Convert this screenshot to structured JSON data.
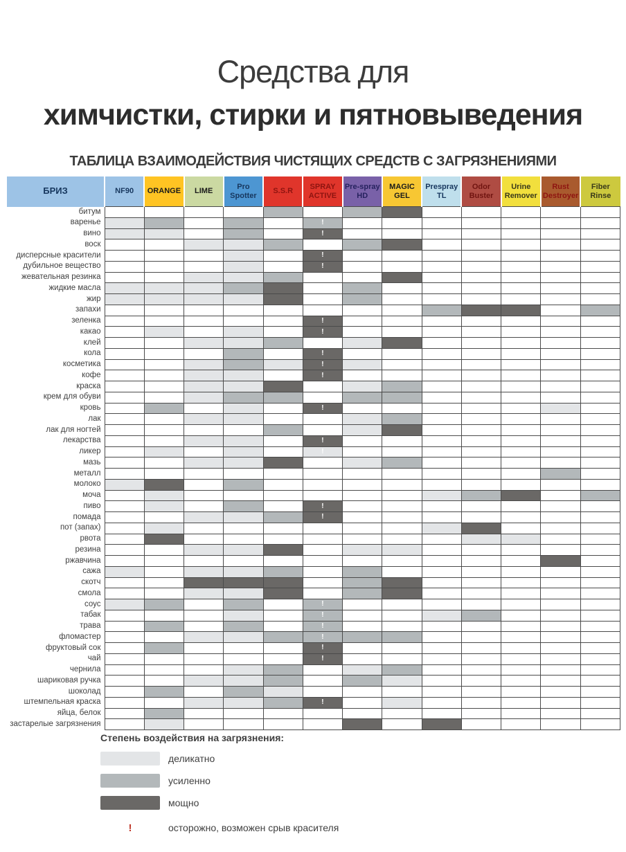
{
  "page": {
    "title_line1": "Средства для",
    "title_line2": "химчистки, стирки и пятновыведения",
    "subtitle": "ТАБЛИЦА ВЗАИМОДЕЙСТВИЯ ЧИСТЯЩИХ СРЕДСТВ С ЗАГРЯЗНЕНИЯМИ"
  },
  "legend": {
    "title": "Степень воздействия на загрязнения:",
    "items": [
      {
        "level": "1",
        "label": "деликатно",
        "color": "#E3E5E7"
      },
      {
        "level": "2",
        "label": "усиленно",
        "color": "#B3B8BA"
      },
      {
        "level": "3",
        "label": "мощно",
        "color": "#6A6866"
      }
    ],
    "warning": {
      "symbol": "!",
      "label": "осторожно, возможен срыв красителя",
      "color": "#C0392B"
    }
  },
  "chart_data": {
    "type": "heatmap",
    "title": "ТАБЛИЦА ВЗАИМОДЕЙСТВИЯ ЧИСТЯЩИХ СРЕДСТВ С ЗАГРЯЗНЕНИЯМИ",
    "corner_label": "БРИЗ",
    "corner_bg": "#9DC3E6",
    "corner_fg": "#17375E",
    "value_scale": {
      "": "не применяется",
      "1": "деликатно",
      "2": "усиленно",
      "3": "мощно",
      "!": "осторожно, возможен срыв красителя"
    },
    "cell_colors": {
      "1": "#E3E5E7",
      "2": "#B3B8BA",
      "3": "#6A6866"
    },
    "columns": [
      {
        "label": "NF90",
        "slug": "nf90",
        "bg": "#9DC3E6",
        "fg": "#17375E"
      },
      {
        "label": "ORANGE",
        "slug": "orange",
        "bg": "#FFC423",
        "fg": "#1a1a1a"
      },
      {
        "label": "LIME",
        "slug": "lime",
        "bg": "#CBD9A2",
        "fg": "#1a1a1a"
      },
      {
        "label": "Pro Spotter",
        "slug": "pro-spotter",
        "bg": "#4D96D2",
        "fg": "#17375E"
      },
      {
        "label": "S.S.R",
        "slug": "ssr",
        "bg": "#E0352B",
        "fg": "#8E1410"
      },
      {
        "label": "SPRAY ACTIVE",
        "slug": "spray-active",
        "bg": "#E0352B",
        "fg": "#8E1410"
      },
      {
        "label": "Pre-spray HD",
        "slug": "pre-spray-hd",
        "bg": "#7961A8",
        "fg": "#26225F"
      },
      {
        "label": "MAGIC GEL",
        "slug": "magic-gel",
        "bg": "#F7C733",
        "fg": "#1a1a1a"
      },
      {
        "label": "Prespray TL",
        "slug": "prespray-tl",
        "bg": "#BFDFEC",
        "fg": "#17375E"
      },
      {
        "label": "Odor Buster",
        "slug": "odor-buster",
        "bg": "#AF4C43",
        "fg": "#701410"
      },
      {
        "label": "Urine Remover",
        "slug": "urine-remover",
        "bg": "#F2DF3D",
        "fg": "#3a3a1a"
      },
      {
        "label": "Rust Destroyer",
        "slug": "rust-destroyer",
        "bg": "#A95A2E",
        "fg": "#8E1410"
      },
      {
        "label": "Fiber Rinse",
        "slug": "fiber-rinse",
        "bg": "#CDC93E",
        "fg": "#3a3a1a"
      }
    ],
    "rows": [
      {
        "label": "битум",
        "cells": [
          "",
          "",
          "",
          "",
          "2",
          "",
          "2",
          "3",
          "",
          "",
          "",
          "",
          ""
        ]
      },
      {
        "label": "варенье",
        "cells": [
          "1",
          "2",
          "",
          "2",
          "",
          "2!",
          "",
          "",
          "",
          "",
          "",
          "",
          ""
        ]
      },
      {
        "label": "вино",
        "cells": [
          "1",
          "1",
          "",
          "2",
          "",
          "3!",
          "",
          "",
          "",
          "",
          "",
          "",
          ""
        ]
      },
      {
        "label": "воск",
        "cells": [
          "",
          "",
          "1",
          "1",
          "2",
          "",
          "2",
          "3",
          "",
          "",
          "",
          "",
          ""
        ]
      },
      {
        "label": "дисперсные красители",
        "cells": [
          "",
          "",
          "",
          "1",
          "",
          "3!",
          "",
          "",
          "",
          "",
          "",
          "",
          ""
        ]
      },
      {
        "label": "дубильное вещество",
        "cells": [
          "",
          "",
          "",
          "1",
          "",
          "3!",
          "",
          "",
          "",
          "",
          "",
          "",
          ""
        ]
      },
      {
        "label": "жевательная резинка",
        "cells": [
          "",
          "",
          "1",
          "1",
          "2",
          "",
          "",
          "3",
          "",
          "",
          "",
          "",
          ""
        ]
      },
      {
        "label": "жидкие масла",
        "cells": [
          "1",
          "1",
          "1",
          "2",
          "3",
          "",
          "2",
          "",
          "",
          "",
          "",
          "",
          ""
        ]
      },
      {
        "label": "жир",
        "cells": [
          "1",
          "1",
          "1",
          "1",
          "3",
          "",
          "2",
          "",
          "",
          "",
          "",
          "",
          ""
        ]
      },
      {
        "label": "запахи",
        "cells": [
          "",
          "",
          "",
          "",
          "",
          "",
          "",
          "",
          "2",
          "3",
          "3",
          "",
          "2"
        ]
      },
      {
        "label": "зеленка",
        "cells": [
          "",
          "",
          "",
          "",
          "",
          "3!",
          "",
          "",
          "",
          "",
          "",
          "",
          ""
        ]
      },
      {
        "label": "какао",
        "cells": [
          "",
          "1",
          "",
          "1",
          "",
          "3!",
          "",
          "",
          "",
          "",
          "",
          "",
          ""
        ]
      },
      {
        "label": "клей",
        "cells": [
          "",
          "",
          "1",
          "1",
          "2",
          "",
          "1",
          "3",
          "",
          "",
          "",
          "",
          ""
        ]
      },
      {
        "label": "кола",
        "cells": [
          "",
          "",
          "",
          "2",
          "",
          "3!",
          "",
          "",
          "",
          "",
          "",
          "",
          ""
        ]
      },
      {
        "label": "косметика",
        "cells": [
          "",
          "",
          "1",
          "2",
          "1",
          "3!",
          "1",
          "",
          "",
          "",
          "",
          "",
          ""
        ]
      },
      {
        "label": "кофе",
        "cells": [
          "",
          "",
          "1",
          "1",
          "",
          "3!",
          "",
          "",
          "",
          "",
          "",
          "",
          ""
        ]
      },
      {
        "label": "краска",
        "cells": [
          "",
          "",
          "1",
          "1",
          "3",
          "",
          "1",
          "2",
          "",
          "",
          "",
          "",
          ""
        ]
      },
      {
        "label": "крем для обуви",
        "cells": [
          "",
          "",
          "1",
          "2",
          "2",
          "",
          "2",
          "2",
          "",
          "",
          "",
          "",
          ""
        ]
      },
      {
        "label": "кровь",
        "cells": [
          "",
          "2",
          "",
          "1",
          "",
          "3!",
          "",
          "",
          "",
          "",
          "",
          "1",
          ""
        ]
      },
      {
        "label": "лак",
        "cells": [
          "",
          "",
          "1",
          "1",
          "",
          "",
          "1",
          "2",
          "",
          "",
          "",
          "",
          ""
        ]
      },
      {
        "label": "лак для ногтей",
        "cells": [
          "",
          "",
          "",
          "",
          "2",
          "",
          "1",
          "3",
          "",
          "",
          "",
          "",
          ""
        ]
      },
      {
        "label": "лекарства",
        "cells": [
          "",
          "",
          "1",
          "1",
          "",
          "3!",
          "",
          "",
          "",
          "",
          "",
          "",
          ""
        ]
      },
      {
        "label": "ликер",
        "cells": [
          "",
          "1",
          "",
          "1",
          "",
          "1!",
          "",
          "",
          "",
          "",
          "",
          "",
          ""
        ]
      },
      {
        "label": "мазь",
        "cells": [
          "",
          "",
          "1",
          "1",
          "3",
          "",
          "1",
          "2",
          "",
          "",
          "",
          "",
          ""
        ]
      },
      {
        "label": "металл",
        "cells": [
          "",
          "",
          "",
          "",
          "",
          "",
          "",
          "",
          "",
          "",
          "",
          "2",
          ""
        ]
      },
      {
        "label": "молоко",
        "cells": [
          "1",
          "3",
          "",
          "2",
          "",
          "",
          "",
          "",
          "",
          "",
          "",
          "",
          ""
        ]
      },
      {
        "label": "моча",
        "cells": [
          "",
          "1",
          "",
          "",
          "",
          "",
          "",
          "",
          "1",
          "2",
          "3",
          "",
          "2"
        ]
      },
      {
        "label": "пиво",
        "cells": [
          "",
          "1",
          "",
          "2",
          "",
          "3!",
          "",
          "",
          "",
          "",
          "",
          "",
          ""
        ]
      },
      {
        "label": "помада",
        "cells": [
          "",
          "",
          "1",
          "1",
          "2",
          "3!",
          "",
          "",
          "",
          "",
          "",
          "",
          ""
        ]
      },
      {
        "label": "пот (запах)",
        "cells": [
          "",
          "1",
          "",
          "",
          "",
          "",
          "",
          "",
          "1",
          "3",
          "",
          "",
          ""
        ]
      },
      {
        "label": "рвота",
        "cells": [
          "",
          "3",
          "",
          "",
          "",
          "",
          "",
          "",
          "",
          "1",
          "1",
          "",
          ""
        ]
      },
      {
        "label": "резина",
        "cells": [
          "",
          "",
          "1",
          "1",
          "3",
          "",
          "1",
          "1",
          "",
          "",
          "",
          "",
          ""
        ]
      },
      {
        "label": "ржавчина",
        "cells": [
          "",
          "",
          "",
          "",
          "",
          "",
          "",
          "",
          "",
          "",
          "",
          "3",
          ""
        ]
      },
      {
        "label": "сажа",
        "cells": [
          "1",
          "",
          "1",
          "1",
          "2",
          "",
          "2",
          "",
          "",
          "",
          "",
          "",
          ""
        ]
      },
      {
        "label": "скотч",
        "cells": [
          "",
          "",
          "3",
          "3",
          "3",
          "",
          "2",
          "3",
          "",
          "",
          "",
          "",
          ""
        ]
      },
      {
        "label": "смола",
        "cells": [
          "",
          "",
          "1",
          "1",
          "3",
          "",
          "2",
          "3",
          "",
          "",
          "",
          "",
          ""
        ]
      },
      {
        "label": "соус",
        "cells": [
          "1",
          "2",
          "",
          "2",
          "",
          "2!",
          "",
          "",
          "",
          "",
          "",
          "",
          ""
        ]
      },
      {
        "label": "табак",
        "cells": [
          "",
          "",
          "",
          "1",
          "",
          "2!",
          "",
          "",
          "1",
          "2",
          "",
          "",
          ""
        ]
      },
      {
        "label": "трава",
        "cells": [
          "",
          "2",
          "",
          "2",
          "",
          "2!",
          "",
          "",
          "",
          "",
          "",
          "",
          ""
        ]
      },
      {
        "label": "фломастер",
        "cells": [
          "",
          "",
          "1",
          "1",
          "2",
          "2!",
          "2",
          "2",
          "",
          "",
          "",
          "",
          ""
        ]
      },
      {
        "label": "фруктовый сок",
        "cells": [
          "",
          "2",
          "",
          "",
          "",
          "3!",
          "",
          "",
          "",
          "",
          "",
          "",
          ""
        ]
      },
      {
        "label": "чай",
        "cells": [
          "",
          "",
          "",
          "",
          "",
          "3!",
          "",
          "",
          "",
          "",
          "",
          "",
          ""
        ]
      },
      {
        "label": "чернила",
        "cells": [
          "",
          "",
          "",
          "1",
          "2",
          "",
          "1",
          "2",
          "",
          "",
          "",
          "",
          ""
        ]
      },
      {
        "label": "шариковая ручка",
        "cells": [
          "",
          "",
          "1",
          "1",
          "2",
          "",
          "2",
          "1",
          "",
          "",
          "",
          "",
          ""
        ]
      },
      {
        "label": "шоколад",
        "cells": [
          "",
          "2",
          "",
          "2",
          "1",
          "",
          "",
          "",
          "",
          "",
          "",
          "",
          ""
        ]
      },
      {
        "label": "штемпельная краска",
        "cells": [
          "",
          "",
          "1",
          "1",
          "2",
          "3!",
          "",
          "1",
          "",
          "",
          "",
          "",
          ""
        ]
      },
      {
        "label": "яйца, белок",
        "cells": [
          "",
          "2",
          "",
          "",
          "",
          "",
          "",
          "",
          "",
          "",
          "",
          "",
          ""
        ]
      },
      {
        "label": "застарелые загрязнения",
        "cells": [
          "",
          "1",
          "",
          "",
          "",
          "",
          "3",
          "",
          "3",
          "",
          "",
          "",
          ""
        ]
      }
    ]
  }
}
